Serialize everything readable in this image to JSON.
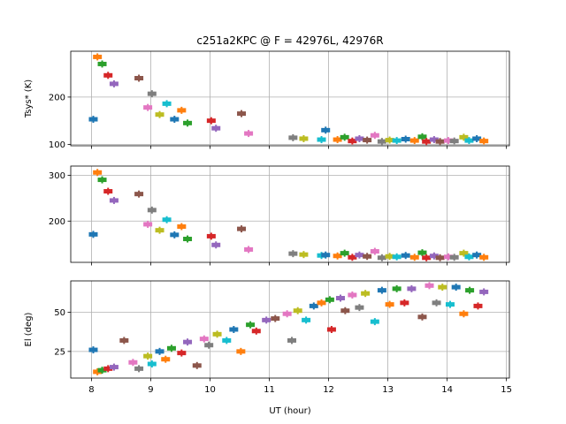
{
  "chart_data": {
    "type": "scatter",
    "title": "c251a2KPC @ F = 42976L, 42976R",
    "xlabel": "UT (hour)",
    "xlim": [
      7.65,
      15.05
    ],
    "xticks": [
      8,
      9,
      10,
      11,
      12,
      13,
      14,
      15
    ],
    "palette": [
      "#1f77b4",
      "#ff7f0e",
      "#2ca02c",
      "#d62728",
      "#9467bd",
      "#8c564b",
      "#e377c2",
      "#7f7f7f",
      "#bcbd22",
      "#17becf"
    ],
    "panels": [
      {
        "ylabel": "Tsys* (K)",
        "ylim": [
          97,
          297
        ],
        "yticks": [
          100,
          200
        ],
        "points": [
          [
            8.03,
            153,
            0
          ],
          [
            8.1,
            285,
            1
          ],
          [
            8.18,
            270,
            2
          ],
          [
            8.28,
            246,
            3
          ],
          [
            8.38,
            228,
            4
          ],
          [
            8.8,
            240,
            5
          ],
          [
            8.95,
            178,
            6
          ],
          [
            9.02,
            207,
            7
          ],
          [
            9.15,
            163,
            8
          ],
          [
            9.27,
            186,
            9
          ],
          [
            9.4,
            153,
            0
          ],
          [
            9.52,
            172,
            1
          ],
          [
            9.62,
            145,
            2
          ],
          [
            10.02,
            150,
            3
          ],
          [
            10.1,
            134,
            4
          ],
          [
            10.53,
            165,
            5
          ],
          [
            10.65,
            123,
            6
          ],
          [
            11.4,
            114,
            7
          ],
          [
            11.58,
            112,
            8
          ],
          [
            11.88,
            110,
            9
          ],
          [
            11.95,
            130,
            0
          ],
          [
            12.15,
            110,
            1
          ],
          [
            12.27,
            115,
            2
          ],
          [
            12.4,
            107,
            3
          ],
          [
            12.52,
            112,
            4
          ],
          [
            12.65,
            109,
            5
          ],
          [
            12.78,
            119,
            6
          ],
          [
            12.9,
            106,
            7
          ],
          [
            13.03,
            109,
            8
          ],
          [
            13.15,
            108,
            9
          ],
          [
            13.3,
            111,
            0
          ],
          [
            13.45,
            108,
            1
          ],
          [
            13.58,
            116,
            2
          ],
          [
            13.65,
            106,
            3
          ],
          [
            13.78,
            110,
            4
          ],
          [
            13.88,
            106,
            5
          ],
          [
            14.02,
            108,
            6
          ],
          [
            14.12,
            107,
            7
          ],
          [
            14.28,
            115,
            8
          ],
          [
            14.37,
            108,
            9
          ],
          [
            14.5,
            112,
            0
          ],
          [
            14.62,
            107,
            1
          ]
        ]
      },
      {
        "ylabel": "",
        "ylim": [
          110,
          320
        ],
        "yticks": [
          200,
          300
        ],
        "points": [
          [
            8.03,
            171,
            0
          ],
          [
            8.1,
            306,
            1
          ],
          [
            8.18,
            290,
            2
          ],
          [
            8.28,
            265,
            3
          ],
          [
            8.38,
            245,
            4
          ],
          [
            8.8,
            259,
            5
          ],
          [
            8.95,
            193,
            6
          ],
          [
            9.02,
            224,
            7
          ],
          [
            9.15,
            180,
            8
          ],
          [
            9.27,
            203,
            9
          ],
          [
            9.4,
            170,
            0
          ],
          [
            9.52,
            188,
            1
          ],
          [
            9.62,
            161,
            2
          ],
          [
            10.02,
            167,
            3
          ],
          [
            10.1,
            148,
            4
          ],
          [
            10.53,
            183,
            5
          ],
          [
            10.65,
            138,
            6
          ],
          [
            11.4,
            129,
            7
          ],
          [
            11.58,
            127,
            8
          ],
          [
            11.88,
            125,
            9
          ],
          [
            11.95,
            126,
            0
          ],
          [
            12.15,
            124,
            1
          ],
          [
            12.27,
            130,
            2
          ],
          [
            12.4,
            121,
            3
          ],
          [
            12.52,
            126,
            4
          ],
          [
            12.65,
            123,
            5
          ],
          [
            12.78,
            134,
            6
          ],
          [
            12.9,
            120,
            7
          ],
          [
            13.03,
            123,
            8
          ],
          [
            13.15,
            122,
            9
          ],
          [
            13.3,
            125,
            0
          ],
          [
            13.45,
            121,
            1
          ],
          [
            13.58,
            131,
            2
          ],
          [
            13.65,
            120,
            3
          ],
          [
            13.78,
            124,
            4
          ],
          [
            13.88,
            120,
            5
          ],
          [
            14.02,
            122,
            6
          ],
          [
            14.12,
            121,
            7
          ],
          [
            14.28,
            130,
            8
          ],
          [
            14.37,
            122,
            9
          ],
          [
            14.5,
            126,
            0
          ],
          [
            14.62,
            121,
            1
          ]
        ]
      },
      {
        "ylabel": "El (deg)",
        "ylim": [
          8,
          70
        ],
        "yticks": [
          25,
          50
        ],
        "points": [
          [
            8.03,
            26,
            0
          ],
          [
            8.1,
            12,
            1
          ],
          [
            8.18,
            13,
            2
          ],
          [
            8.28,
            14,
            3
          ],
          [
            8.38,
            15,
            4
          ],
          [
            8.55,
            32,
            5
          ],
          [
            8.7,
            18,
            6
          ],
          [
            8.8,
            14,
            7
          ],
          [
            8.95,
            22,
            8
          ],
          [
            9.02,
            17,
            9
          ],
          [
            9.15,
            25,
            0
          ],
          [
            9.25,
            20,
            1
          ],
          [
            9.35,
            27,
            2
          ],
          [
            9.52,
            24,
            3
          ],
          [
            9.62,
            31,
            4
          ],
          [
            9.78,
            16,
            5
          ],
          [
            9.9,
            33,
            6
          ],
          [
            9.98,
            29,
            7
          ],
          [
            10.12,
            36,
            8
          ],
          [
            10.28,
            32,
            9
          ],
          [
            10.4,
            39,
            0
          ],
          [
            10.52,
            25,
            1
          ],
          [
            10.68,
            42,
            2
          ],
          [
            10.78,
            38,
            3
          ],
          [
            10.95,
            45,
            4
          ],
          [
            11.1,
            46,
            5
          ],
          [
            11.3,
            49,
            6
          ],
          [
            11.38,
            32,
            7
          ],
          [
            11.48,
            51,
            8
          ],
          [
            11.62,
            45,
            9
          ],
          [
            11.75,
            54,
            0
          ],
          [
            11.88,
            56,
            1
          ],
          [
            12.02,
            58,
            2
          ],
          [
            12.05,
            39,
            3
          ],
          [
            12.2,
            59,
            4
          ],
          [
            12.28,
            51,
            5
          ],
          [
            12.4,
            61,
            6
          ],
          [
            12.52,
            53,
            7
          ],
          [
            12.62,
            62,
            8
          ],
          [
            12.78,
            44,
            9
          ],
          [
            12.9,
            64,
            0
          ],
          [
            13.03,
            55,
            1
          ],
          [
            13.15,
            65,
            2
          ],
          [
            13.28,
            56,
            3
          ],
          [
            13.4,
            65,
            4
          ],
          [
            13.58,
            47,
            5
          ],
          [
            13.7,
            67,
            6
          ],
          [
            13.82,
            56,
            7
          ],
          [
            13.92,
            66,
            8
          ],
          [
            14.05,
            55,
            9
          ],
          [
            14.15,
            66,
            0
          ],
          [
            14.28,
            49,
            1
          ],
          [
            14.38,
            64,
            2
          ],
          [
            14.52,
            54,
            3
          ],
          [
            14.62,
            63,
            4
          ]
        ]
      }
    ]
  }
}
